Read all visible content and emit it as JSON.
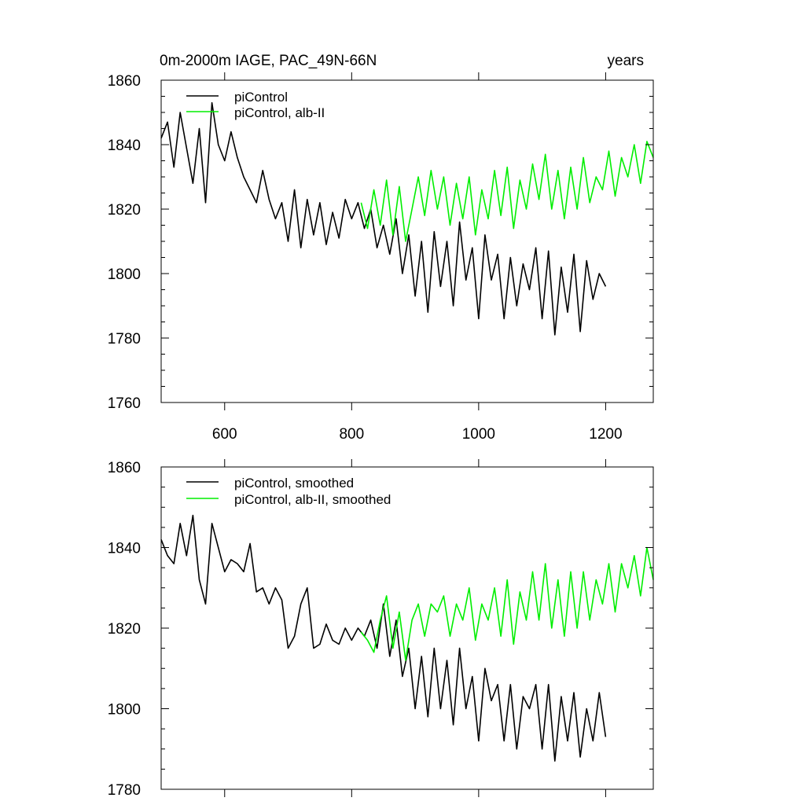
{
  "chart_data": [
    {
      "type": "line",
      "title": "0m-2000m IAGE, PAC_49N-66N",
      "title_right": "years",
      "xlim": [
        500,
        1275
      ],
      "ylim": [
        1760,
        1860
      ],
      "xticks": [
        600,
        800,
        1000,
        1200
      ],
      "xtick_labels": [
        "600",
        "800",
        "1000",
        "1200"
      ],
      "yticks": [
        1760,
        1780,
        1800,
        1820,
        1840,
        1860
      ],
      "ytick_labels": [
        "1760",
        "1780",
        "1800",
        "1820",
        "1840",
        "1860"
      ],
      "legend_position": "top-left",
      "series": [
        {
          "name": "piControl",
          "color": "#000000",
          "x": [
            500,
            510,
            520,
            530,
            540,
            550,
            560,
            570,
            580,
            590,
            600,
            610,
            620,
            630,
            640,
            650,
            660,
            670,
            680,
            690,
            700,
            710,
            720,
            730,
            740,
            750,
            760,
            770,
            780,
            790,
            800,
            810,
            820,
            830,
            840,
            850,
            860,
            870,
            880,
            890,
            900,
            910,
            920,
            930,
            940,
            950,
            960,
            970,
            980,
            990,
            1000,
            1010,
            1020,
            1030,
            1040,
            1050,
            1060,
            1070,
            1080,
            1090,
            1100,
            1110,
            1120,
            1130,
            1140,
            1150,
            1160,
            1170,
            1180,
            1190,
            1200
          ],
          "y": [
            1842,
            1847,
            1833,
            1850,
            1839,
            1828,
            1845,
            1822,
            1853,
            1840,
            1835,
            1844,
            1836,
            1830,
            1826,
            1822,
            1832,
            1823,
            1817,
            1822,
            1810,
            1826,
            1808,
            1823,
            1812,
            1822,
            1809,
            1819,
            1811,
            1823,
            1817,
            1822,
            1814,
            1820,
            1808,
            1815,
            1806,
            1817,
            1800,
            1812,
            1793,
            1810,
            1788,
            1813,
            1796,
            1810,
            1790,
            1816,
            1798,
            1808,
            1786,
            1812,
            1798,
            1806,
            1786,
            1805,
            1790,
            1803,
            1795,
            1808,
            1786,
            1807,
            1781,
            1802,
            1788,
            1806,
            1782,
            1804,
            1792,
            1800,
            1796
          ]
        },
        {
          "name": "piControl, alb-II",
          "color": "#00ee00",
          "x": [
            815,
            825,
            835,
            845,
            855,
            865,
            875,
            885,
            895,
            905,
            915,
            925,
            935,
            945,
            955,
            965,
            975,
            985,
            995,
            1005,
            1015,
            1025,
            1035,
            1045,
            1055,
            1065,
            1075,
            1085,
            1095,
            1105,
            1115,
            1125,
            1135,
            1145,
            1155,
            1165,
            1175,
            1185,
            1195,
            1205,
            1215,
            1225,
            1235,
            1245,
            1255,
            1265,
            1275
          ],
          "y": [
            1822,
            1814,
            1826,
            1815,
            1829,
            1812,
            1827,
            1810,
            1820,
            1830,
            1818,
            1832,
            1820,
            1830,
            1815,
            1828,
            1817,
            1830,
            1812,
            1826,
            1817,
            1832,
            1818,
            1833,
            1814,
            1829,
            1820,
            1834,
            1823,
            1837,
            1820,
            1832,
            1817,
            1833,
            1820,
            1836,
            1822,
            1830,
            1826,
            1838,
            1824,
            1836,
            1830,
            1840,
            1828,
            1841,
            1836
          ]
        }
      ]
    },
    {
      "type": "line",
      "xlim": [
        500,
        1275
      ],
      "ylim": [
        1780,
        1860
      ],
      "xticks": [
        600,
        800,
        1000,
        1200
      ],
      "yticks": [
        1780,
        1800,
        1820,
        1840,
        1860
      ],
      "ytick_labels": [
        "1780",
        "1800",
        "1820",
        "1840",
        "1860"
      ],
      "legend_position": "top-left",
      "series": [
        {
          "name": "piControl, smoothed",
          "color": "#000000",
          "x": [
            500,
            510,
            520,
            530,
            540,
            550,
            560,
            570,
            580,
            590,
            600,
            610,
            620,
            630,
            640,
            650,
            660,
            670,
            680,
            690,
            700,
            710,
            720,
            730,
            740,
            750,
            760,
            770,
            780,
            790,
            800,
            810,
            820,
            830,
            840,
            850,
            860,
            870,
            880,
            890,
            900,
            910,
            920,
            930,
            940,
            950,
            960,
            970,
            980,
            990,
            1000,
            1010,
            1020,
            1030,
            1040,
            1050,
            1060,
            1070,
            1080,
            1090,
            1100,
            1110,
            1120,
            1130,
            1140,
            1150,
            1160,
            1170,
            1180,
            1190,
            1200
          ],
          "y": [
            1842,
            1838,
            1836,
            1846,
            1838,
            1848,
            1832,
            1826,
            1846,
            1840,
            1834,
            1837,
            1836,
            1834,
            1841,
            1829,
            1830,
            1826,
            1830,
            1827,
            1815,
            1818,
            1826,
            1830,
            1815,
            1816,
            1821,
            1817,
            1816,
            1820,
            1817,
            1820,
            1818,
            1822,
            1815,
            1826,
            1813,
            1822,
            1808,
            1815,
            1800,
            1813,
            1798,
            1815,
            1800,
            1812,
            1796,
            1815,
            1800,
            1808,
            1792,
            1810,
            1802,
            1806,
            1792,
            1806,
            1790,
            1803,
            1800,
            1806,
            1790,
            1806,
            1787,
            1803,
            1792,
            1804,
            1788,
            1800,
            1792,
            1804,
            1793
          ]
        },
        {
          "name": "piControl, alb-II, smoothed",
          "color": "#00ee00",
          "x": [
            815,
            825,
            835,
            845,
            855,
            865,
            875,
            885,
            895,
            905,
            915,
            925,
            935,
            945,
            955,
            965,
            975,
            985,
            995,
            1005,
            1015,
            1025,
            1035,
            1045,
            1055,
            1065,
            1075,
            1085,
            1095,
            1105,
            1115,
            1125,
            1135,
            1145,
            1155,
            1165,
            1175,
            1185,
            1195,
            1205,
            1215,
            1225,
            1235,
            1245,
            1255,
            1265,
            1275
          ],
          "y": [
            1819,
            1817,
            1814,
            1822,
            1828,
            1815,
            1824,
            1812,
            1822,
            1826,
            1818,
            1826,
            1824,
            1828,
            1818,
            1826,
            1822,
            1830,
            1817,
            1826,
            1822,
            1830,
            1818,
            1832,
            1816,
            1829,
            1822,
            1834,
            1822,
            1836,
            1820,
            1832,
            1818,
            1834,
            1820,
            1834,
            1822,
            1832,
            1826,
            1836,
            1824,
            1836,
            1830,
            1838,
            1828,
            1840,
            1832
          ]
        }
      ]
    }
  ]
}
